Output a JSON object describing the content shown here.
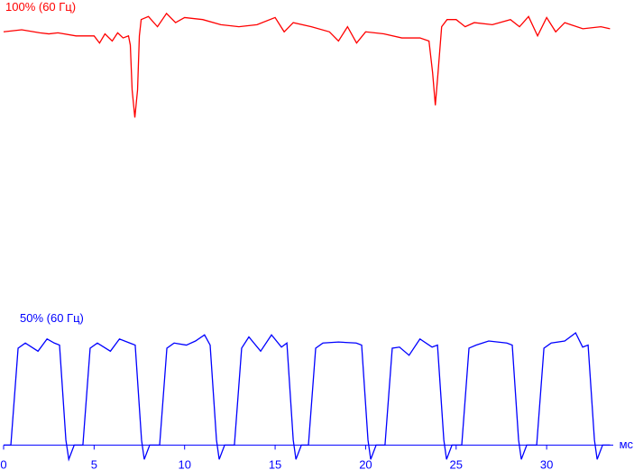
{
  "chart_data": {
    "type": "line",
    "xlabel": "мс",
    "xlim": [
      0,
      33.68
    ],
    "xticks": [
      0,
      5,
      10,
      15,
      20,
      25,
      30
    ],
    "ylim": [
      -20,
      430
    ],
    "series": [
      {
        "name": "100% (60 Гц)",
        "color": "#ff0000",
        "x": [
          0,
          1,
          2,
          2.5,
          3,
          4,
          5,
          5.3,
          5.6,
          6,
          6.3,
          6.6,
          6.9,
          7.0,
          7.1,
          7.25,
          7.4,
          7.5,
          7.6,
          8,
          8.5,
          9,
          9.5,
          10,
          11,
          12,
          13,
          14,
          15,
          15.5,
          16,
          17,
          18,
          18.5,
          19,
          19.5,
          20,
          21,
          22,
          23,
          23.5,
          23.7,
          23.85,
          24.0,
          24.2,
          24.5,
          25,
          25.5,
          26,
          27,
          28,
          28.5,
          29,
          29.5,
          30,
          30.5,
          31,
          32,
          33,
          33.5
        ],
        "values": [
          405,
          407,
          404,
          403,
          404,
          401,
          401,
          394,
          403,
          396,
          404,
          399,
          401,
          392,
          348,
          321,
          348,
          401,
          417,
          420,
          410,
          423,
          414,
          419,
          417,
          412,
          410,
          412,
          419,
          405,
          414,
          410,
          405,
          396,
          410,
          394,
          405,
          403,
          399,
          399,
          396,
          365,
          333,
          365,
          410,
          417,
          417,
          410,
          414,
          412,
          417,
          410,
          420,
          401,
          419,
          405,
          414,
          408,
          410,
          408
        ]
      },
      {
        "name": "50% (60 Гц)",
        "color": "#0000ff",
        "x": [
          0,
          0.4,
          0.8,
          1.2,
          1.9,
          2.4,
          2.8,
          3.09,
          3.44,
          3.6,
          3.9,
          4.38,
          4.78,
          5.18,
          5.9,
          6.4,
          6.97,
          7.27,
          7.62,
          7.77,
          8.07,
          8.62,
          9.02,
          9.42,
          10.1,
          10.6,
          11.1,
          11.41,
          11.76,
          11.91,
          12.21,
          12.75,
          13.15,
          13.55,
          14.2,
          14.8,
          15.35,
          15.65,
          16.0,
          16.15,
          16.45,
          16.84,
          17.24,
          17.64,
          18.5,
          19.48,
          19.78,
          20.13,
          20.28,
          20.58,
          21.07,
          21.47,
          21.87,
          22.4,
          23.0,
          23.67,
          23.97,
          24.32,
          24.47,
          24.77,
          25.31,
          25.71,
          26.11,
          26.8,
          27.8,
          28.1,
          28.45,
          28.6,
          28.9,
          29.45,
          29.85,
          30.25,
          31.0,
          31.6,
          31.99,
          32.29,
          32.64,
          32.79,
          33.09,
          33.5
        ],
        "values": [
          0,
          0,
          95,
          100,
          92,
          104,
          100,
          98,
          5,
          -14,
          0,
          0,
          95,
          100,
          92,
          104,
          100,
          98,
          5,
          -14,
          0,
          0,
          95,
          100,
          98,
          102,
          108,
          98,
          5,
          -14,
          0,
          0,
          95,
          106,
          92,
          108,
          96,
          100,
          5,
          -14,
          0,
          0,
          95,
          100,
          101,
          100,
          98,
          5,
          -14,
          0,
          0,
          95,
          96,
          88,
          104,
          96,
          98,
          5,
          -14,
          0,
          0,
          95,
          98,
          102,
          100,
          98,
          5,
          -14,
          0,
          0,
          95,
          100,
          102,
          110,
          96,
          98,
          5,
          -14,
          0,
          0
        ]
      }
    ]
  }
}
